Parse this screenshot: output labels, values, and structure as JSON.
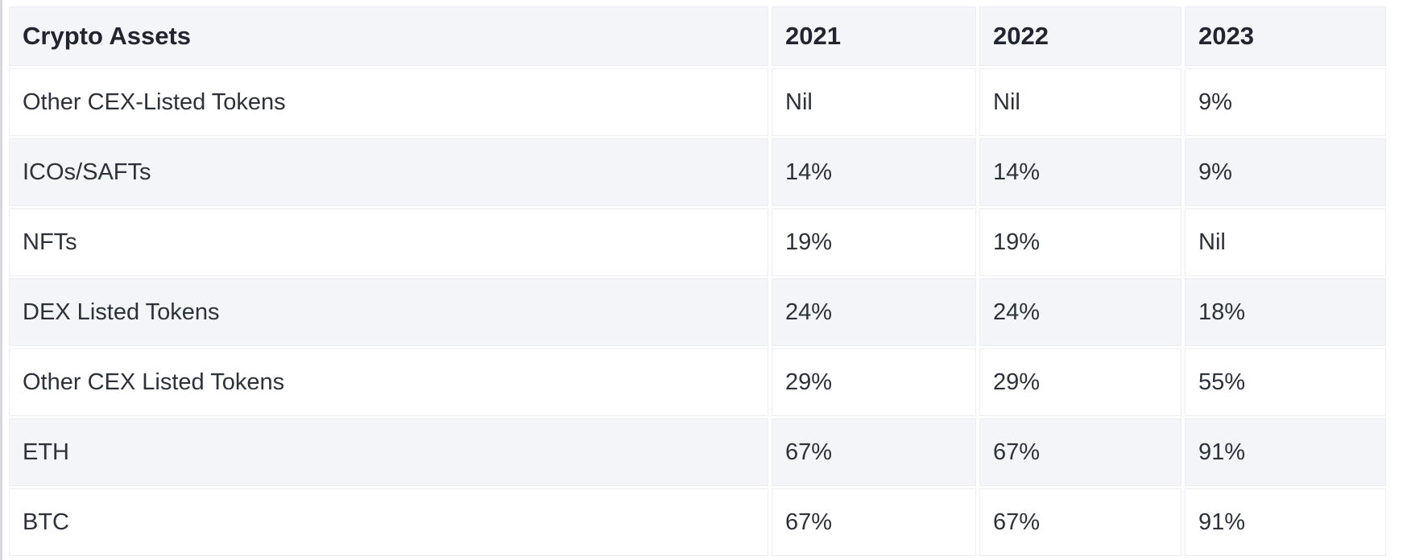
{
  "page": {
    "background": "#ffffff",
    "left_edge_line_color": "#d7d8de"
  },
  "table": {
    "header_bg": "#f4f5f9",
    "stripe_bg": "#f4f5f9",
    "row_bg": "#ffffff",
    "divider_color": "#eceef4",
    "header_text_color": "#222530",
    "body_text_color": "#2d313a",
    "columns": [
      "Crypto Assets",
      "2021",
      "2022",
      "2023"
    ],
    "rows": [
      {
        "label": "Other CEX-Listed Tokens",
        "values": [
          "Nil",
          "Nil",
          "9%"
        ]
      },
      {
        "label": "ICOs/SAFTs",
        "values": [
          "14%",
          "14%",
          "9%"
        ]
      },
      {
        "label": "NFTs",
        "values": [
          "19%",
          "19%",
          "Nil"
        ]
      },
      {
        "label": "DEX Listed Tokens",
        "values": [
          "24%",
          "24%",
          "18%"
        ]
      },
      {
        "label": "Other CEX Listed Tokens",
        "values": [
          "29%",
          "29%",
          "55%"
        ]
      },
      {
        "label": "ETH",
        "values": [
          "67%",
          "67%",
          "91%"
        ]
      },
      {
        "label": "BTC",
        "values": [
          "67%",
          "67%",
          "91%"
        ]
      }
    ]
  },
  "chart_data": {
    "type": "table",
    "columns": [
      "Crypto Assets",
      "2021",
      "2022",
      "2023"
    ],
    "categories": [
      "Other CEX-Listed Tokens",
      "ICOs/SAFTs",
      "NFTs",
      "DEX Listed Tokens",
      "Other CEX Listed Tokens",
      "ETH",
      "BTC"
    ],
    "series": [
      {
        "name": "2021",
        "values": [
          "Nil",
          "14%",
          "19%",
          "24%",
          "29%",
          "67%",
          "67%"
        ]
      },
      {
        "name": "2022",
        "values": [
          "Nil",
          "14%",
          "19%",
          "24%",
          "29%",
          "67%",
          "67%"
        ]
      },
      {
        "name": "2023",
        "values": [
          "9%",
          "9%",
          "Nil",
          "18%",
          "55%",
          "91%",
          "91%"
        ]
      }
    ]
  }
}
